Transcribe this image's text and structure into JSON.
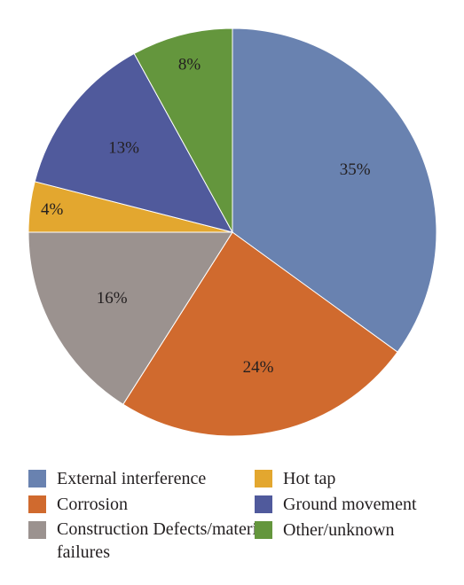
{
  "chart_data": {
    "type": "pie",
    "slices": [
      {
        "label": "External interference",
        "value": 35,
        "value_label": "35%",
        "color": "#6982b0"
      },
      {
        "label": "Corrosion",
        "value": 24,
        "value_label": "24%",
        "color": "#d06a2e"
      },
      {
        "label": "Construction Defects/material failures",
        "value": 16,
        "value_label": "16%",
        "color": "#9b928f"
      },
      {
        "label": "Hot tap",
        "value": 4,
        "value_label": "4%",
        "color": "#e3a72f"
      },
      {
        "label": "Ground movement",
        "value": 13,
        "value_label": "13%",
        "color": "#505a9c"
      },
      {
        "label": "Other/unknown",
        "value": 8,
        "value_label": "8%",
        "color": "#64963d"
      }
    ],
    "start": "12 o'clock",
    "direction": "clockwise",
    "legend_position": "bottom"
  }
}
